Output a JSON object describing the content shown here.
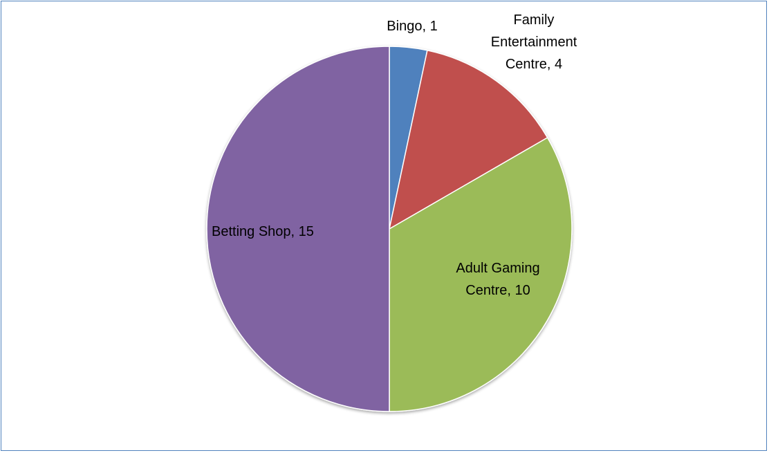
{
  "chart_data": {
    "type": "pie",
    "title": "",
    "categories": [
      "Bingo",
      "Family Entertainment Centre",
      "Adult Gaming Centre",
      "Betting Shop"
    ],
    "values": [
      1,
      4,
      10,
      15
    ],
    "colors": [
      "#4f81bd",
      "#c0504d",
      "#9bbb59",
      "#8064a2"
    ],
    "data_labels": [
      [
        "Bingo, 1"
      ],
      [
        "Family",
        "Entertainment",
        "Centre, 4"
      ],
      [
        "Adult Gaming",
        "Centre, 10"
      ],
      [
        "Betting Shop, 15"
      ]
    ],
    "start_angle": "12 o'clock",
    "direction": "clockwise",
    "legend": "none",
    "border_color": "#4f81bd"
  }
}
